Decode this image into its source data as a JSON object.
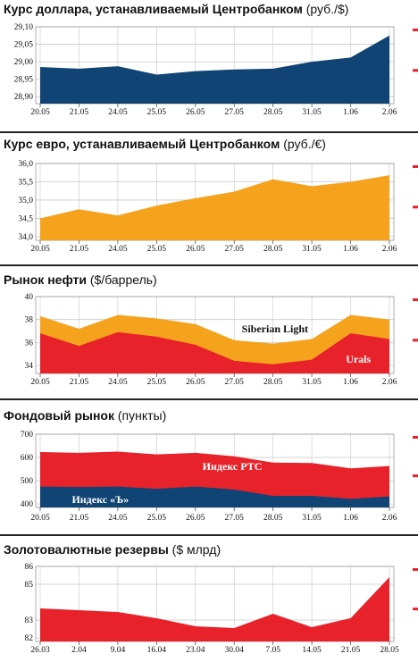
{
  "colors": {
    "navy": "#0f4474",
    "orange": "#f5a21c",
    "red": "#e8222a",
    "grid": "#c8c8c8",
    "rule": "#222222"
  },
  "chart_data": [
    {
      "type": "area",
      "title": "Курс доллара, устанавливаемый Центробанком",
      "unit": "(руб./$)",
      "categories": [
        "20.05",
        "21.05",
        "24.05",
        "25.05",
        "26.05",
        "27.05",
        "28.05",
        "31.05",
        "1.06",
        "2.06"
      ],
      "series": [
        {
          "values": [
            28.985,
            28.98,
            28.987,
            28.963,
            28.973,
            28.978,
            28.98,
            29.0,
            29.012,
            29.075
          ]
        }
      ],
      "yticks": [
        "29,10",
        "29,05",
        "29,00",
        "28,95",
        "28,90"
      ],
      "ylim": [
        28.88,
        29.1
      ],
      "grid": true
    },
    {
      "type": "area",
      "title": "Курс евро, устанавливаемый Центробанком",
      "unit": "(руб./€)",
      "categories": [
        "20.05",
        "21.05",
        "24.05",
        "25.05",
        "26.05",
        "27.05",
        "28.05",
        "31.05",
        "1.06",
        "2.06"
      ],
      "series": [
        {
          "values": [
            34.5,
            34.75,
            34.58,
            34.85,
            35.05,
            35.23,
            35.57,
            35.38,
            35.5,
            35.68
          ]
        }
      ],
      "yticks": [
        "36,0",
        "35,5",
        "35,0",
        "34,5",
        "34,0"
      ],
      "ylim": [
        33.9,
        36.0
      ],
      "grid": true
    },
    {
      "type": "area",
      "title": "Рынок нефти",
      "unit": "($/баррель)",
      "categories": [
        "20.05",
        "21.05",
        "24.05",
        "25.05",
        "26.05",
        "27.05",
        "28.05",
        "31.05",
        "1.06",
        "2.06"
      ],
      "series": [
        {
          "name": "Siberian Light",
          "values": [
            38.3,
            37.2,
            38.4,
            38.1,
            37.6,
            36.2,
            35.9,
            36.3,
            38.4,
            38.0
          ]
        },
        {
          "name": "Urals",
          "values": [
            36.8,
            35.7,
            36.9,
            36.5,
            35.8,
            34.4,
            34.1,
            34.5,
            36.8,
            36.3
          ]
        }
      ],
      "yticks": [
        "40",
        "38",
        "36",
        "34"
      ],
      "ylim": [
        33.3,
        40
      ],
      "grid": true
    },
    {
      "type": "area",
      "title": "Фондовый рынок",
      "unit": "(пункты)",
      "categories": [
        "20.05",
        "21.05",
        "24.05",
        "25.05",
        "26.05",
        "27.05",
        "28.05",
        "31.05",
        "1.06",
        "2.06"
      ],
      "series": [
        {
          "name": "Индекс РТС",
          "values": [
            623,
            620,
            625,
            613,
            620,
            605,
            578,
            576,
            553,
            563
          ]
        },
        {
          "name": "Индекс «Ъ»",
          "values": [
            475,
            473,
            475,
            465,
            475,
            462,
            435,
            435,
            422,
            432
          ]
        }
      ],
      "yticks": [
        "700",
        "600",
        "500",
        "400"
      ],
      "ylim": [
        385,
        700
      ],
      "grid": true
    },
    {
      "type": "area",
      "title": "Золотовалютные резервы",
      "unit": "($ млрд)",
      "categories": [
        "26.03",
        "2.04",
        "9.04",
        "16.04",
        "23.04",
        "30.04",
        "7.05",
        "14.05",
        "21.05",
        "28.05"
      ],
      "series": [
        {
          "values": [
            83.65,
            83.55,
            83.45,
            83.1,
            82.65,
            82.55,
            83.35,
            82.6,
            83.1,
            85.4
          ]
        }
      ],
      "yticks": [
        "86",
        "85",
        "83",
        "82"
      ],
      "ylim": [
        81.8,
        86
      ],
      "grid": true
    }
  ]
}
